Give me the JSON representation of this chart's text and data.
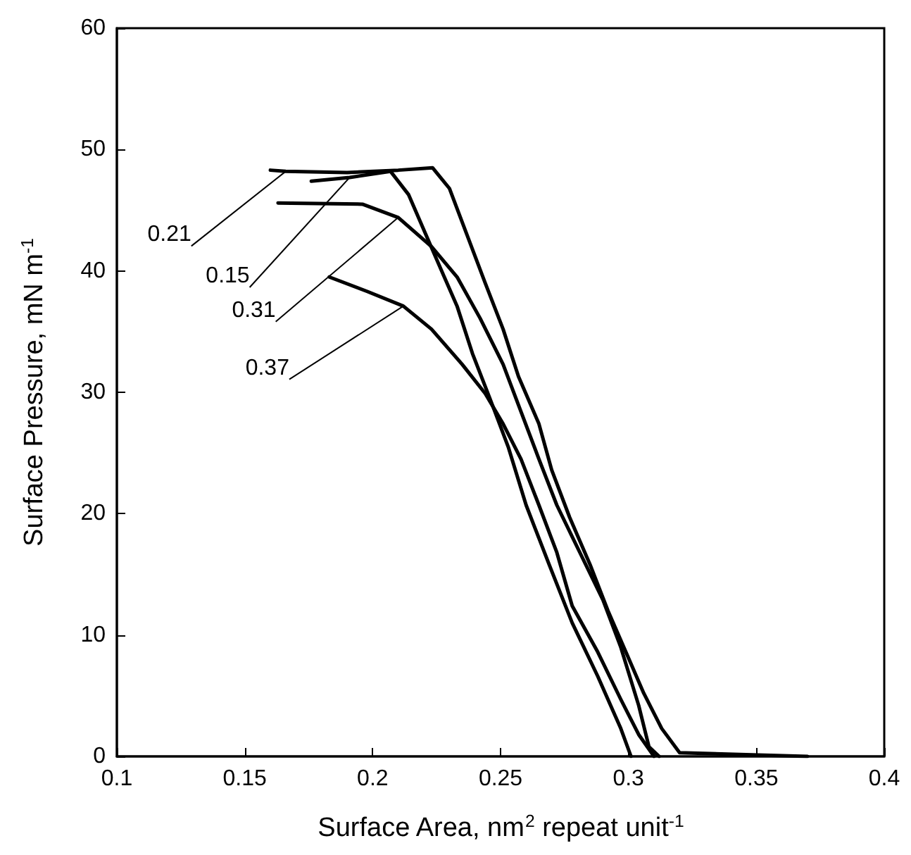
{
  "chart_data": {
    "type": "line",
    "xlabel": "Surface Area, nm$^{2}$ repeat unit$^{-1}$",
    "ylabel": "Surface Pressure, mN m$^{-1}$",
    "xlim": [
      0.1,
      0.4
    ],
    "xticks": [
      0.1,
      0.15,
      0.2,
      0.25,
      0.3,
      0.35,
      0.4
    ],
    "ylim": [
      0,
      60
    ],
    "yticks": [
      0,
      10,
      20,
      30,
      40,
      50,
      60
    ],
    "grid": false,
    "legend": false,
    "marker": "none",
    "line_style": "solid",
    "series": [
      {
        "name": "0.21",
        "color": "#000000",
        "x": [
          0.16,
          0.166,
          0.19,
          0.21,
          0.2234,
          0.23,
          0.237,
          0.244,
          0.251,
          0.257,
          0.265,
          0.27,
          0.277,
          0.285,
          0.292,
          0.299,
          0.306,
          0.313,
          0.32,
          0.37
        ],
        "values": [
          48.3,
          48.2,
          48.1,
          48.3,
          48.5,
          46.8,
          42.9,
          39.0,
          35.2,
          31.3,
          27.4,
          23.6,
          19.7,
          15.8,
          12.0,
          8.6,
          5.2,
          2.3,
          0.3,
          0
        ]
      },
      {
        "name": "0.15",
        "color": "#000000",
        "x": [
          0.176,
          0.191,
          0.207,
          0.214,
          0.221,
          0.228,
          0.233,
          0.239,
          0.246,
          0.253,
          0.26,
          0.269,
          0.278,
          0.288,
          0.297,
          0.301
        ],
        "values": [
          47.4,
          47.7,
          48.2,
          46.3,
          42.9,
          39.5,
          37.1,
          33.2,
          29.4,
          25.5,
          20.7,
          15.8,
          11.0,
          6.6,
          2.3,
          0
        ]
      },
      {
        "name": "0.31",
        "color": "#000000",
        "x": [
          0.163,
          0.196,
          0.21,
          0.223,
          0.233,
          0.242,
          0.251,
          0.258,
          0.265,
          0.272,
          0.281,
          0.29,
          0.297,
          0.304,
          0.308,
          0.312
        ],
        "values": [
          45.6,
          45.5,
          44.4,
          42.0,
          39.5,
          36.1,
          32.3,
          28.4,
          24.5,
          20.7,
          16.8,
          12.9,
          9.0,
          4.2,
          0.8,
          0
        ]
      },
      {
        "name": "0.37",
        "color": "#000000",
        "x": [
          0.183,
          0.198,
          0.212,
          0.223,
          0.235,
          0.244,
          0.251,
          0.258,
          0.265,
          0.272,
          0.278,
          0.288,
          0.297,
          0.304,
          0.31
        ],
        "values": [
          39.5,
          38.3,
          37.1,
          35.2,
          32.3,
          29.9,
          27.4,
          24.5,
          20.7,
          16.8,
          12.4,
          8.6,
          4.7,
          1.8,
          0
        ]
      }
    ]
  }
}
